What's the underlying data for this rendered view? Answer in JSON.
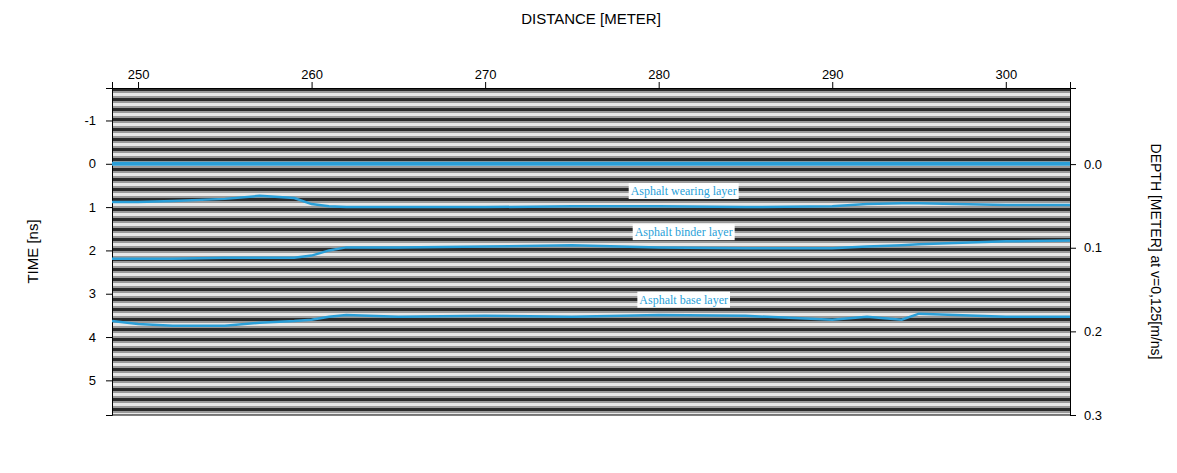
{
  "chart_data": {
    "type": "line",
    "title": "DISTANCE [METER]",
    "y_label": "TIME [ns]",
    "y2_label": "DEPTH [METER] at v=0,125[m/ns]",
    "x": [
      248.5,
      250,
      252,
      255,
      257,
      259,
      260,
      261,
      262,
      265,
      270,
      275,
      280,
      285,
      290,
      292,
      294,
      295,
      300,
      303.7
    ],
    "xlim": [
      248.5,
      303.7
    ],
    "xticks": [
      250,
      260,
      270,
      280,
      290,
      300
    ],
    "ylim": [
      -1.75,
      5.8
    ],
    "yticks": [
      -1,
      0,
      1,
      2,
      3,
      4,
      5
    ],
    "y2lim": [
      -0.091,
      0.3
    ],
    "y2ticks": [
      {
        "value": 0,
        "label": "0.0"
      },
      0.1,
      0.2,
      0.3
    ],
    "grid": false,
    "series": [
      {
        "color": "#2a9fd8",
        "values": [
          0,
          0,
          0,
          0,
          0,
          0,
          0,
          0,
          0,
          0,
          0,
          0,
          0,
          0,
          0,
          0,
          0,
          0,
          0,
          0
        ]
      },
      {
        "name": "Asphalt wearing layer",
        "color": "#2a9fd8",
        "values": [
          0.88,
          0.88,
          0.86,
          0.81,
          0.74,
          0.79,
          0.93,
          0.98,
          1.0,
          1.0,
          1.0,
          0.98,
          0.98,
          1.0,
          0.98,
          0.93,
          0.91,
          0.91,
          0.95,
          0.95
        ]
      },
      {
        "name": "Asphalt binder layer",
        "color": "#2a9fd8",
        "values": [
          2.19,
          2.19,
          2.19,
          2.17,
          2.17,
          2.17,
          2.12,
          2.0,
          1.93,
          1.93,
          1.91,
          1.88,
          1.93,
          1.95,
          1.95,
          1.91,
          1.88,
          1.86,
          1.79,
          1.77
        ]
      },
      {
        "name": "Asphalt base layer",
        "color": "#2a9fd8",
        "values": [
          3.63,
          3.7,
          3.74,
          3.74,
          3.67,
          3.63,
          3.6,
          3.53,
          3.49,
          3.53,
          3.51,
          3.53,
          3.49,
          3.51,
          3.6,
          3.53,
          3.6,
          3.46,
          3.53,
          3.53
        ]
      }
    ]
  }
}
